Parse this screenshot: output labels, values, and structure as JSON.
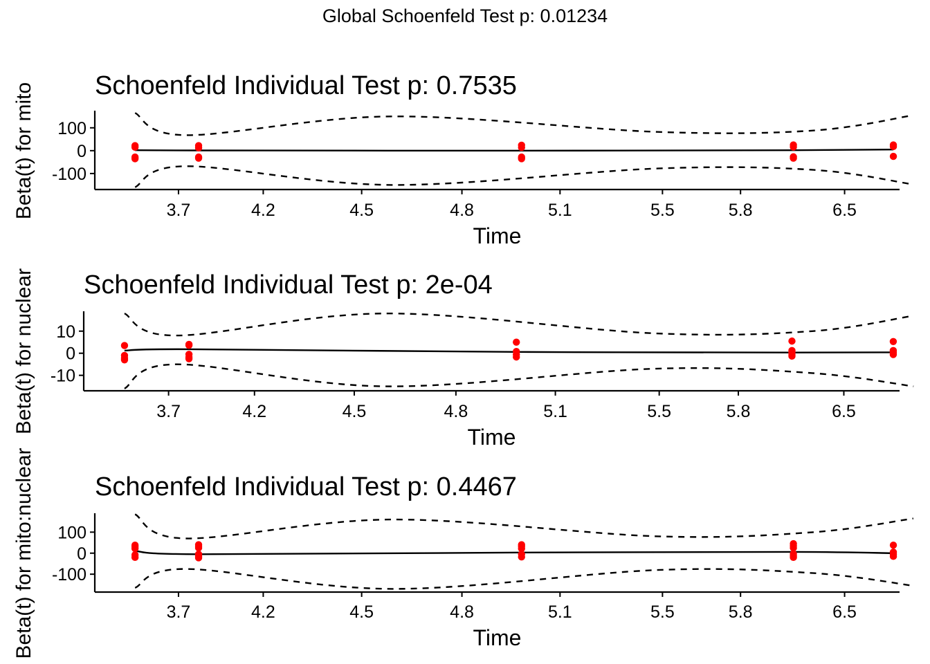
{
  "suptitle": "Global Schoenfeld Test p: 0.01234",
  "chart_data": [
    {
      "type": "scatter",
      "title": "Schoenfeld Individual Test p: 0.7535",
      "xlabel": "Time",
      "ylabel": "Beta(t) for mito",
      "x_tick_labels": [
        "3.7",
        "4.2",
        "4.5",
        "4.8",
        "5.1",
        "5.5",
        "5.8",
        "6.5"
      ],
      "y_ticks": [
        -100,
        0,
        100
      ],
      "ylim": [
        -170,
        175
      ],
      "x_cats": [
        1,
        2,
        3,
        4,
        5
      ],
      "points": [
        {
          "x": 1,
          "y": 22
        },
        {
          "x": 1,
          "y": 15
        },
        {
          "x": 1,
          "y": -28
        },
        {
          "x": 1,
          "y": -35
        },
        {
          "x": 2,
          "y": 22
        },
        {
          "x": 2,
          "y": 12
        },
        {
          "x": 2,
          "y": -28
        },
        {
          "x": 2,
          "y": -33
        },
        {
          "x": 3,
          "y": 24
        },
        {
          "x": 3,
          "y": 14
        },
        {
          "x": 3,
          "y": -28
        },
        {
          "x": 3,
          "y": -35
        },
        {
          "x": 4,
          "y": 25
        },
        {
          "x": 4,
          "y": 16
        },
        {
          "x": 4,
          "y": -27
        },
        {
          "x": 4,
          "y": -33
        },
        {
          "x": 5,
          "y": 25
        },
        {
          "x": 5,
          "y": 18
        },
        {
          "x": 5,
          "y": -25
        }
      ],
      "fit": [
        {
          "x": 1,
          "y": 2
        },
        {
          "x": 2,
          "y": 1
        },
        {
          "x": 3,
          "y": 0
        },
        {
          "x": 4,
          "y": 2
        },
        {
          "x": 5,
          "y": 5
        }
      ],
      "upper": [
        {
          "x": 1,
          "y": 165
        },
        {
          "x": 1.8,
          "y": 68
        },
        {
          "x": 2.6,
          "y": 150
        },
        {
          "x": 3.5,
          "y": 82
        },
        {
          "x": 4.2,
          "y": 88
        },
        {
          "x": 5.2,
          "y": 155
        }
      ],
      "lower": [
        {
          "x": 1,
          "y": -160
        },
        {
          "x": 1.8,
          "y": -68
        },
        {
          "x": 2.6,
          "y": -150
        },
        {
          "x": 3.5,
          "y": -78
        },
        {
          "x": 4.2,
          "y": -84
        },
        {
          "x": 5.2,
          "y": -148
        }
      ]
    },
    {
      "type": "scatter",
      "title": "Schoenfeld Individual Test p: 2e-04",
      "xlabel": "Time",
      "ylabel": "Beta(t) for nuclear",
      "x_tick_labels": [
        "3.7",
        "4.2",
        "4.5",
        "4.8",
        "5.1",
        "5.5",
        "5.8",
        "6.5"
      ],
      "y_ticks": [
        -10,
        0,
        10
      ],
      "ylim": [
        -17,
        19
      ],
      "x_cats": [
        1,
        2,
        3,
        4,
        5
      ],
      "points": [
        {
          "x": 1,
          "y": 3.5
        },
        {
          "x": 1,
          "y": -1
        },
        {
          "x": 1,
          "y": -2.2
        },
        {
          "x": 1,
          "y": -3
        },
        {
          "x": 2,
          "y": 4
        },
        {
          "x": 2,
          "y": 3.6
        },
        {
          "x": 2,
          "y": -0.5
        },
        {
          "x": 2,
          "y": -1.8
        },
        {
          "x": 2,
          "y": -2.5
        },
        {
          "x": 3,
          "y": 5
        },
        {
          "x": 3,
          "y": 0.8
        },
        {
          "x": 3,
          "y": -0.6
        },
        {
          "x": 3,
          "y": -1.7
        },
        {
          "x": 4,
          "y": 5.5
        },
        {
          "x": 4,
          "y": 1.2
        },
        {
          "x": 4,
          "y": 0.3
        },
        {
          "x": 4,
          "y": -0.7
        },
        {
          "x": 4,
          "y": -1.3
        },
        {
          "x": 5,
          "y": 5.3
        },
        {
          "x": 5,
          "y": 1.2
        },
        {
          "x": 5,
          "y": 0.2
        },
        {
          "x": 5,
          "y": -0.6
        }
      ],
      "fit": [
        {
          "x": 1,
          "y": 1.2
        },
        {
          "x": 2,
          "y": 1.8
        },
        {
          "x": 3,
          "y": 0.6
        },
        {
          "x": 4,
          "y": 0.3
        },
        {
          "x": 5,
          "y": 0.4
        }
      ],
      "upper": [
        {
          "x": 1,
          "y": 18
        },
        {
          "x": 1.8,
          "y": 8
        },
        {
          "x": 2.6,
          "y": 18
        },
        {
          "x": 3.5,
          "y": 9
        },
        {
          "x": 4.2,
          "y": 10
        },
        {
          "x": 5.2,
          "y": 17
        }
      ],
      "lower": [
        {
          "x": 1,
          "y": -16
        },
        {
          "x": 1.8,
          "y": -5
        },
        {
          "x": 2.6,
          "y": -15
        },
        {
          "x": 3.5,
          "y": -7
        },
        {
          "x": 4.2,
          "y": -9
        },
        {
          "x": 5.2,
          "y": -15
        }
      ]
    },
    {
      "type": "scatter",
      "title": "Schoenfeld Individual Test p: 0.4467",
      "xlabel": "Time",
      "ylabel": "Beta(t) for mito:nuclear",
      "x_tick_labels": [
        "3.7",
        "4.2",
        "4.5",
        "4.8",
        "5.1",
        "5.5",
        "5.8",
        "6.5"
      ],
      "y_ticks": [
        -100,
        0,
        100
      ],
      "ylim": [
        -185,
        190
      ],
      "x_cats": [
        1,
        2,
        3,
        4,
        5
      ],
      "points": [
        {
          "x": 1,
          "y": 38
        },
        {
          "x": 1,
          "y": 30
        },
        {
          "x": 1,
          "y": 22
        },
        {
          "x": 1,
          "y": -8
        },
        {
          "x": 1,
          "y": -20
        },
        {
          "x": 2,
          "y": 40
        },
        {
          "x": 2,
          "y": 32
        },
        {
          "x": 2,
          "y": 25
        },
        {
          "x": 2,
          "y": -5
        },
        {
          "x": 2,
          "y": -15
        },
        {
          "x": 2,
          "y": -22
        },
        {
          "x": 3,
          "y": 40
        },
        {
          "x": 3,
          "y": 32
        },
        {
          "x": 3,
          "y": 22
        },
        {
          "x": 3,
          "y": -5
        },
        {
          "x": 3,
          "y": -18
        },
        {
          "x": 4,
          "y": 45
        },
        {
          "x": 4,
          "y": 35
        },
        {
          "x": 4,
          "y": 25
        },
        {
          "x": 4,
          "y": -3
        },
        {
          "x": 4,
          "y": -12
        },
        {
          "x": 4,
          "y": -20
        },
        {
          "x": 5,
          "y": 38
        },
        {
          "x": 5,
          "y": 5
        },
        {
          "x": 5,
          "y": -5
        },
        {
          "x": 5,
          "y": -15
        }
      ],
      "fit": [
        {
          "x": 1,
          "y": 10
        },
        {
          "x": 2,
          "y": -5
        },
        {
          "x": 3,
          "y": 3
        },
        {
          "x": 4,
          "y": 6
        },
        {
          "x": 5,
          "y": 0
        }
      ],
      "upper": [
        {
          "x": 1,
          "y": 185
        },
        {
          "x": 1.8,
          "y": 70
        },
        {
          "x": 2.6,
          "y": 160
        },
        {
          "x": 3.5,
          "y": 80
        },
        {
          "x": 4.2,
          "y": 100
        },
        {
          "x": 5.2,
          "y": 165
        }
      ],
      "lower": [
        {
          "x": 1,
          "y": -165
        },
        {
          "x": 1.8,
          "y": -75
        },
        {
          "x": 2.6,
          "y": -170
        },
        {
          "x": 3.5,
          "y": -80
        },
        {
          "x": 4.2,
          "y": -95
        },
        {
          "x": 5.2,
          "y": -155
        }
      ]
    }
  ]
}
